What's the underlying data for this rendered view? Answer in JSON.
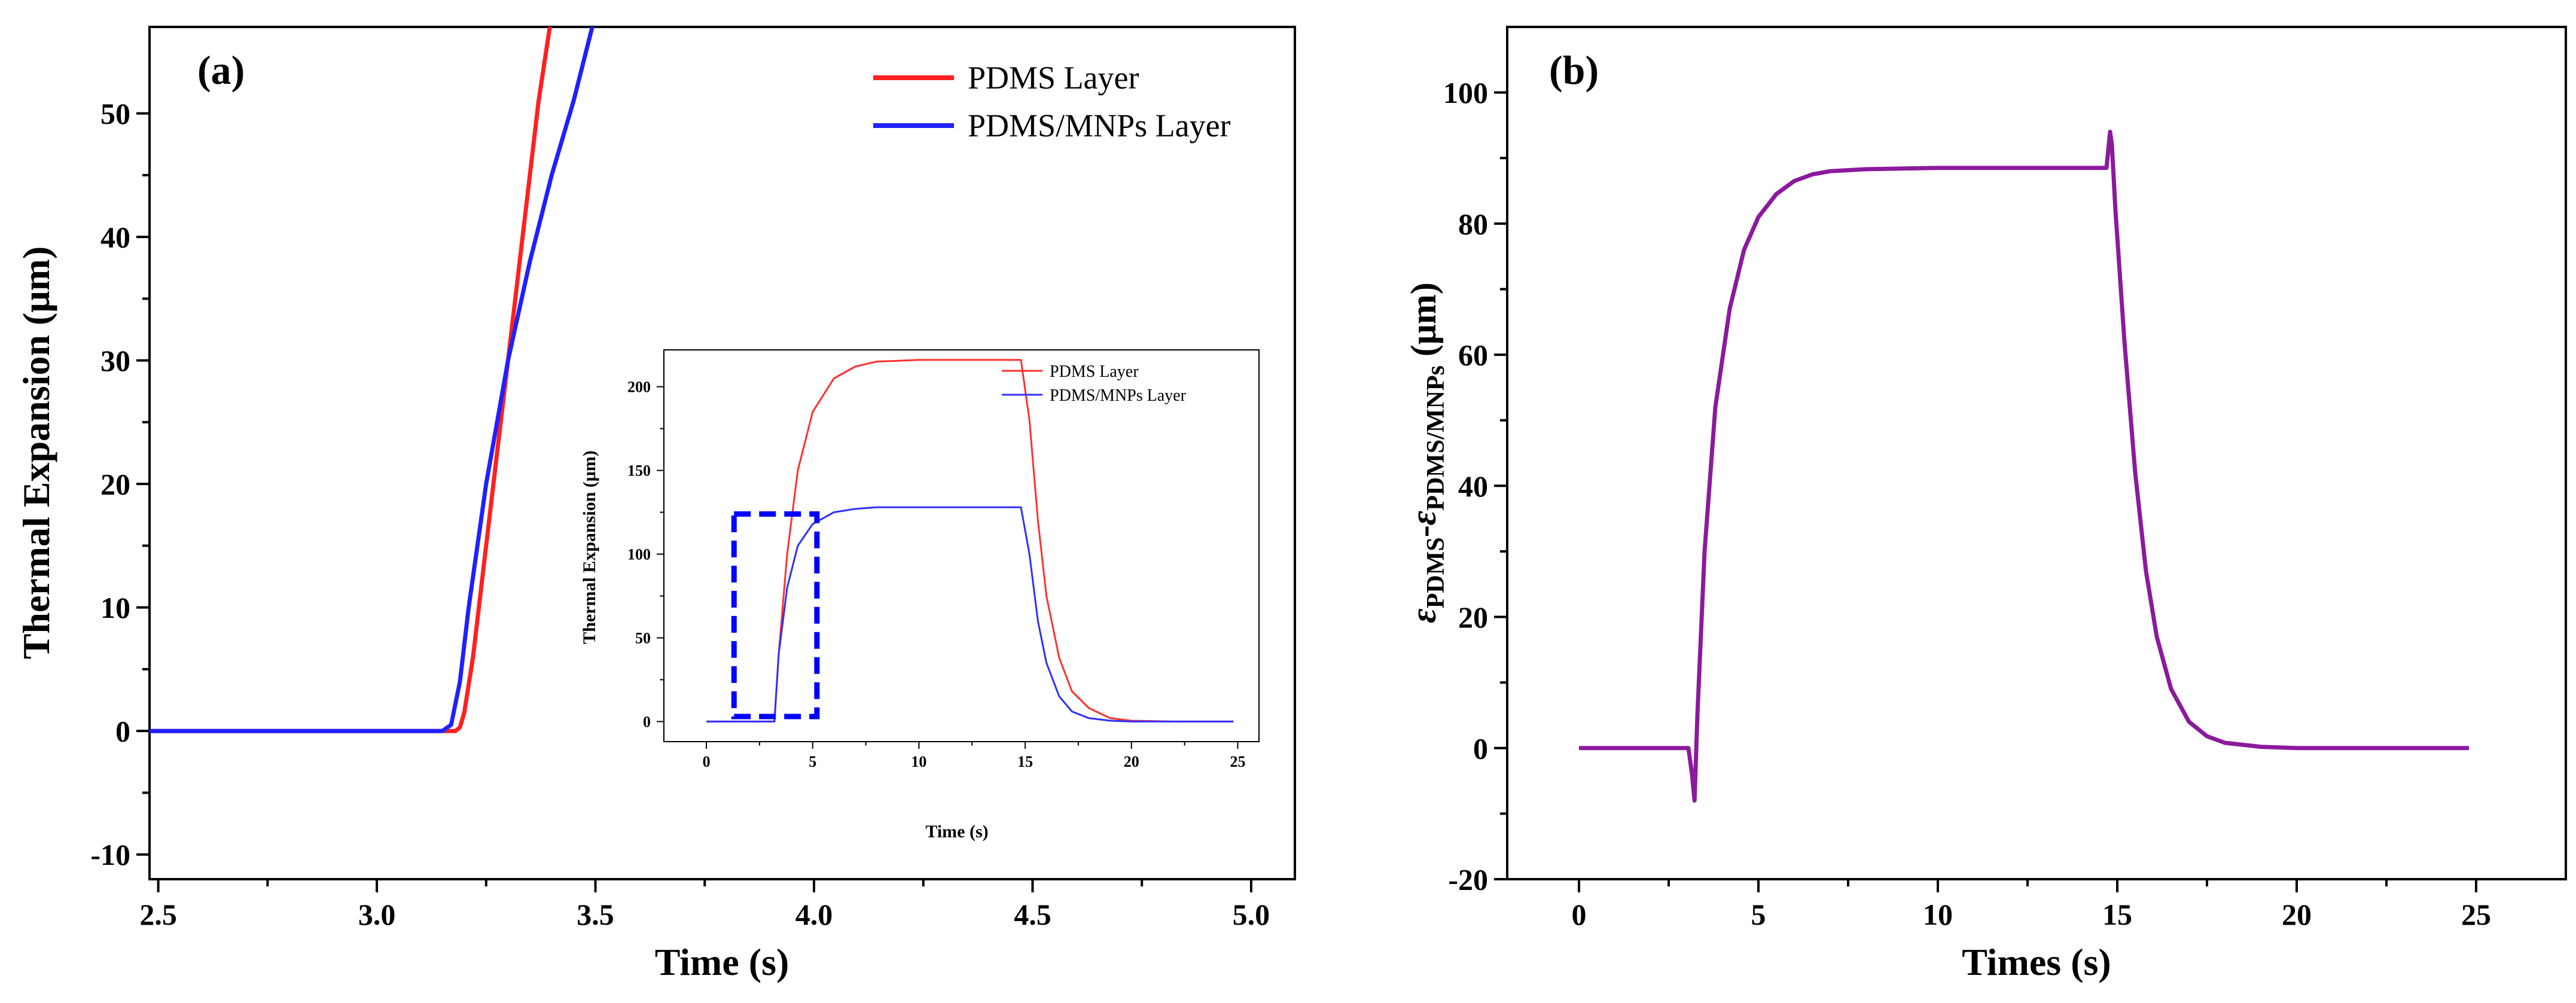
{
  "chart_data": [
    {
      "id": "a",
      "type": "line",
      "panel_label": "(a)",
      "xlabel": "Time (s)",
      "ylabel": "Thermal Expansion (μm)",
      "xlim": [
        2.48,
        5.1
      ],
      "ylim": [
        -12,
        57
      ],
      "xticks": [
        2.5,
        3.0,
        3.5,
        4.0,
        4.5,
        5.0
      ],
      "xtick_labels": [
        "2.5",
        "3.0",
        "3.5",
        "4.0",
        "4.5",
        "5.0"
      ],
      "yticks": [
        -10,
        0,
        10,
        20,
        30,
        40,
        50
      ],
      "ytick_labels": [
        "-10",
        "0",
        "10",
        "20",
        "30",
        "40",
        "50"
      ],
      "legend_position": "top-right",
      "series": [
        {
          "name": "PDMS Layer",
          "color": "#ff2020",
          "x": [
            2.48,
            3.15,
            3.18,
            3.19,
            3.2,
            3.22,
            3.25,
            3.28,
            3.31,
            3.34,
            3.37,
            3.4
          ],
          "y": [
            0,
            0,
            0,
            0.3,
            1.5,
            6,
            15,
            24,
            33,
            42,
            51,
            58
          ]
        },
        {
          "name": "PDMS/MNPs Layer",
          "color": "#2020ff",
          "x": [
            2.48,
            3.15,
            3.17,
            3.19,
            3.21,
            3.25,
            3.3,
            3.35,
            3.4,
            3.45,
            3.5
          ],
          "y": [
            0,
            0,
            0.5,
            4,
            10,
            20,
            30,
            38,
            45,
            51,
            58
          ]
        }
      ],
      "inset": {
        "type": "line",
        "xlabel": "Time (s)",
        "ylabel": "Thermal Expansion (μm)",
        "xlim": [
          -2,
          26
        ],
        "ylim": [
          -12,
          222
        ],
        "xticks": [
          0,
          5,
          10,
          15,
          20,
          25
        ],
        "xtick_labels": [
          "0",
          "5",
          "10",
          "15",
          "20",
          "25"
        ],
        "yticks": [
          0,
          50,
          100,
          150,
          200
        ],
        "ytick_labels": [
          "0",
          "50",
          "100",
          "150",
          "200"
        ],
        "legend_position": "top-right",
        "highlight_box": {
          "x": [
            1.3,
            5.2
          ],
          "y": [
            3,
            124
          ],
          "color": "#0000ff"
        },
        "series": [
          {
            "name": "PDMS Layer",
            "color": "#ff3030",
            "x": [
              0,
              3.2,
              3.4,
              3.8,
              4.3,
              5,
              6,
              7,
              8,
              10,
              12,
              14,
              14.8,
              15.2,
              15.6,
              16,
              16.6,
              17.2,
              18,
              19,
              20,
              22,
              24.8
            ],
            "y": [
              0,
              0,
              40,
              100,
              150,
              185,
              205,
              212,
              215,
              216,
              216,
              216,
              216,
              180,
              120,
              75,
              38,
              18,
              8,
              2,
              0.5,
              0,
              0
            ]
          },
          {
            "name": "PDMS/MNPs Layer",
            "color": "#3030ff",
            "x": [
              0,
              3.2,
              3.4,
              3.8,
              4.3,
              5,
              6,
              7,
              8,
              10,
              12,
              14,
              14.8,
              15.2,
              15.6,
              16,
              16.6,
              17.2,
              18,
              19,
              20,
              22,
              24.8
            ],
            "y": [
              0,
              0,
              40,
              80,
              105,
              118,
              125,
              127,
              128,
              128,
              128,
              128,
              128,
              100,
              60,
              35,
              15,
              6,
              2,
              0.5,
              0,
              0,
              0
            ]
          }
        ]
      }
    },
    {
      "id": "b",
      "type": "line",
      "panel_label": "(b)",
      "xlabel": "Times (s)",
      "ylabel_parts": {
        "eps": "ε",
        "sub1": "PDMS",
        "dash": "-",
        "sub2": "PDMS/MNPs",
        "unit": " (μm)"
      },
      "xlim": [
        -2,
        27.5
      ],
      "ylim": [
        -20,
        110
      ],
      "xticks": [
        0,
        5,
        10,
        15,
        20,
        25
      ],
      "xtick_labels": [
        "0",
        "5",
        "10",
        "15",
        "20",
        "25"
      ],
      "yticks": [
        -20,
        0,
        20,
        40,
        60,
        80,
        100
      ],
      "ytick_labels": [
        "-20",
        "0",
        "20",
        "40",
        "60",
        "80",
        "100"
      ],
      "series": [
        {
          "name": "",
          "color": "#8b1a9c",
          "x": [
            0,
            3.05,
            3.15,
            3.22,
            3.3,
            3.5,
            3.8,
            4.2,
            4.6,
            5,
            5.5,
            6,
            6.5,
            7,
            8,
            9,
            10,
            12,
            14,
            14.7,
            14.8,
            14.85,
            14.95,
            15.2,
            15.5,
            15.8,
            16.1,
            16.5,
            17,
            17.5,
            18,
            19,
            20,
            22,
            24.8
          ],
          "y": [
            0,
            0,
            -4,
            -8,
            5,
            30,
            52,
            67,
            76,
            81,
            84.5,
            86.5,
            87.5,
            88,
            88.3,
            88.4,
            88.5,
            88.5,
            88.5,
            88.5,
            94,
            92,
            82,
            62,
            42,
            27,
            17,
            9,
            4,
            1.8,
            0.8,
            0.2,
            0,
            0,
            0
          ]
        }
      ]
    }
  ]
}
